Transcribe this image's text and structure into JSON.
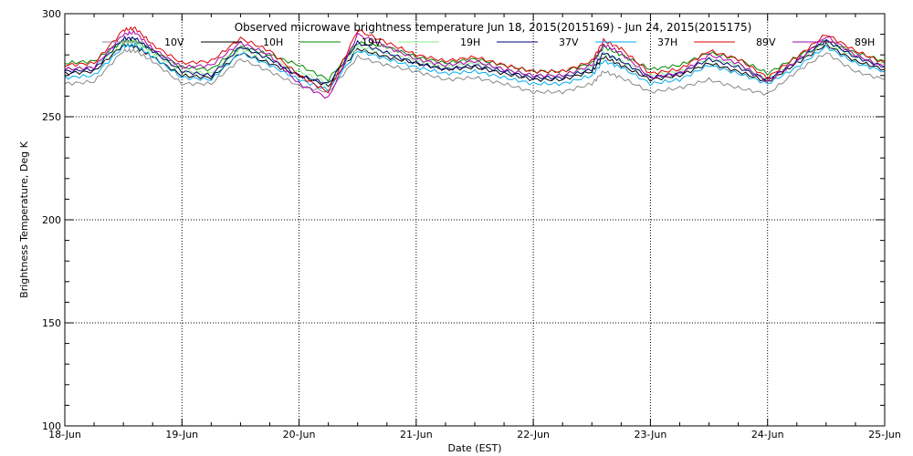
{
  "chart_data": {
    "type": "line",
    "title": "Observed microwave brightness temperature Jun 18, 2015(2015169) - Jun 24, 2015(2015175)",
    "xlabel": "Date (EST)",
    "ylabel": "Brightness Temperature, Deg K",
    "xlim": [
      0,
      7
    ],
    "ylim": [
      100,
      300
    ],
    "grid": true,
    "legend_position": "top",
    "x_tick_labels": [
      "18-Jun",
      "19-Jun",
      "20-Jun",
      "21-Jun",
      "22-Jun",
      "23-Jun",
      "24-Jun",
      "25-Jun"
    ],
    "y_tick_labels": [
      "100",
      "150",
      "200",
      "250",
      "300"
    ],
    "x_days": [
      0,
      0.25,
      0.5,
      0.6,
      0.75,
      1.0,
      1.25,
      1.5,
      1.75,
      2.0,
      2.25,
      2.5,
      2.75,
      3.0,
      3.25,
      3.5,
      3.75,
      4.0,
      4.25,
      4.5,
      4.6,
      4.75,
      5.0,
      5.25,
      5.5,
      5.75,
      6.0,
      6.25,
      6.5,
      6.75,
      7.0
    ],
    "series": [
      {
        "name": "10V",
        "color": "#888888",
        "values": [
          266,
          267,
          282,
          282,
          277,
          266,
          266,
          278,
          272,
          265,
          262,
          279,
          275,
          272,
          268,
          269,
          266,
          262,
          262,
          266,
          272,
          269,
          262,
          264,
          268,
          264,
          261,
          272,
          281,
          272,
          268
        ]
      },
      {
        "name": "10H",
        "color": "#000000",
        "values": [
          271,
          272,
          285,
          284,
          279,
          270,
          269,
          281,
          276,
          270,
          265,
          283,
          279,
          276,
          273,
          274,
          271,
          268,
          268,
          272,
          279,
          275,
          268,
          270,
          276,
          272,
          267,
          276,
          285,
          277,
          273
        ]
      },
      {
        "name": "19V",
        "color": "#008800",
        "values": [
          276,
          277,
          287,
          287,
          282,
          274,
          273,
          284,
          280,
          275,
          268,
          286,
          284,
          279,
          276,
          278,
          275,
          272,
          272,
          276,
          284,
          280,
          273,
          275,
          281,
          278,
          271,
          279,
          287,
          281,
          277
        ]
      },
      {
        "name": "19H",
        "color": "#88ee88",
        "values": [
          273,
          274,
          286,
          286,
          281,
          272,
          271,
          283,
          278,
          272,
          266,
          284,
          281,
          277,
          274,
          276,
          273,
          270,
          270,
          274,
          281,
          277,
          270,
          272,
          278,
          275,
          268,
          277,
          286,
          279,
          275
        ]
      },
      {
        "name": "37V",
        "color": "#000080",
        "values": [
          272,
          273,
          288,
          288,
          282,
          272,
          270,
          284,
          278,
          270,
          266,
          286,
          281,
          276,
          273,
          275,
          272,
          269,
          269,
          273,
          281,
          277,
          269,
          271,
          278,
          274,
          268,
          277,
          287,
          279,
          274
        ]
      },
      {
        "name": "37H",
        "color": "#00aaee",
        "values": [
          269,
          270,
          284,
          285,
          279,
          269,
          268,
          281,
          275,
          268,
          263,
          282,
          278,
          274,
          271,
          272,
          269,
          266,
          266,
          270,
          277,
          274,
          266,
          268,
          275,
          271,
          266,
          274,
          284,
          276,
          272
        ]
      },
      {
        "name": "89V",
        "color": "#dd0000",
        "values": [
          275,
          276,
          292,
          293,
          285,
          276,
          277,
          288,
          282,
          270,
          262,
          292,
          286,
          280,
          277,
          279,
          275,
          272,
          272,
          277,
          287,
          283,
          271,
          273,
          282,
          278,
          269,
          279,
          290,
          282,
          276
        ]
      },
      {
        "name": "89H",
        "color": "#aa00aa",
        "values": [
          273,
          274,
          290,
          291,
          283,
          274,
          275,
          286,
          280,
          266,
          259,
          290,
          284,
          278,
          275,
          277,
          273,
          270,
          270,
          275,
          285,
          281,
          269,
          271,
          280,
          276,
          267,
          277,
          289,
          280,
          274
        ]
      }
    ]
  }
}
